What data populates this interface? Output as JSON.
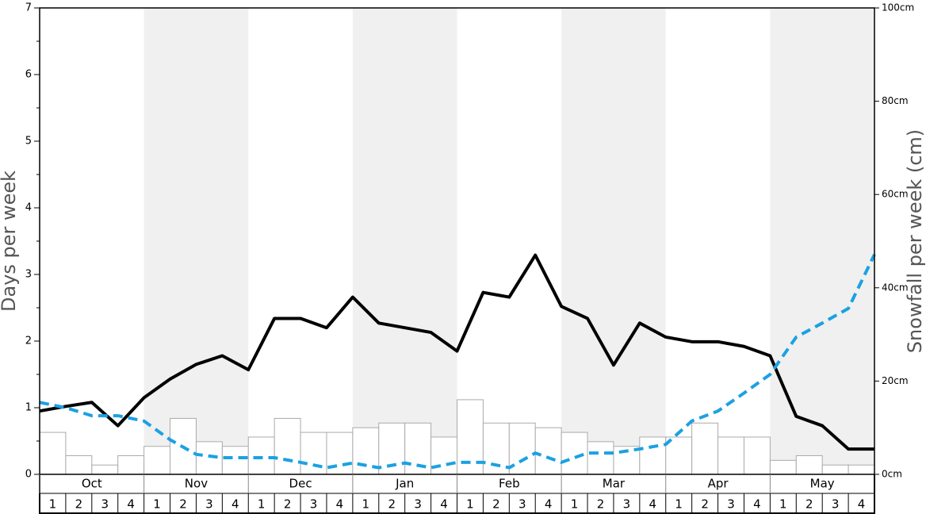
{
  "chart_data": {
    "type": "combo",
    "y_label": "Days per week",
    "y2_label": "Snowfall per week (cm)",
    "months": [
      "Oct",
      "Nov",
      "Dec",
      "Jan",
      "Feb",
      "Mar",
      "Apr",
      "May"
    ],
    "week_labels": [
      "1",
      "2",
      "3",
      "4"
    ],
    "ylim": [
      0,
      7
    ],
    "yticks": [
      0,
      1,
      2,
      3,
      4,
      5,
      6,
      7
    ],
    "yminorticks": [
      0.5,
      1.5,
      2.5,
      3.5,
      4.5,
      5.5,
      6.5
    ],
    "y2lim": [
      0,
      100
    ],
    "y2ticks": [
      {
        "value": 0,
        "label": "0cm"
      },
      {
        "value": 20,
        "label": "20cm"
      },
      {
        "value": 40,
        "label": "40cm"
      },
      {
        "value": 60,
        "label": "60cm"
      },
      {
        "value": 80,
        "label": "80cm"
      },
      {
        "value": 100,
        "label": "100cm"
      }
    ],
    "band_color": "#f0f0f0",
    "series": [
      {
        "type": "bar",
        "axis": "y2",
        "color": "#ffffff",
        "stroke": "#aaaaaa",
        "values": [
          9,
          4,
          2,
          4,
          6,
          12,
          7,
          6,
          8,
          12,
          9,
          9,
          10,
          11,
          11,
          8,
          16,
          11,
          11,
          10,
          9,
          7,
          6,
          8,
          8,
          11,
          8,
          8,
          3,
          4,
          2,
          2
        ]
      },
      {
        "type": "line",
        "color": "#000000",
        "dash": false,
        "values": [
          0.95,
          1.02,
          1.08,
          0.73,
          1.15,
          1.43,
          1.65,
          1.78,
          1.57,
          2.34,
          2.34,
          2.2,
          2.66,
          2.27,
          2.2,
          2.13,
          1.85,
          2.73,
          2.66,
          3.29,
          2.52,
          2.34,
          1.64,
          2.27,
          2.06,
          1.99,
          1.99,
          1.92,
          1.78,
          0.87,
          0.73,
          0.38,
          0.38
        ]
      },
      {
        "type": "line",
        "color": "#1ba1e2",
        "dash": true,
        "values": [
          1.08,
          1.0,
          0.88,
          0.88,
          0.8,
          0.52,
          0.3,
          0.25,
          0.25,
          0.25,
          0.18,
          0.1,
          0.17,
          0.1,
          0.17,
          0.1,
          0.18,
          0.18,
          0.1,
          0.32,
          0.18,
          0.32,
          0.32,
          0.38,
          0.45,
          0.8,
          0.95,
          1.22,
          1.5,
          2.06,
          2.27,
          2.49,
          3.3
        ]
      }
    ]
  }
}
